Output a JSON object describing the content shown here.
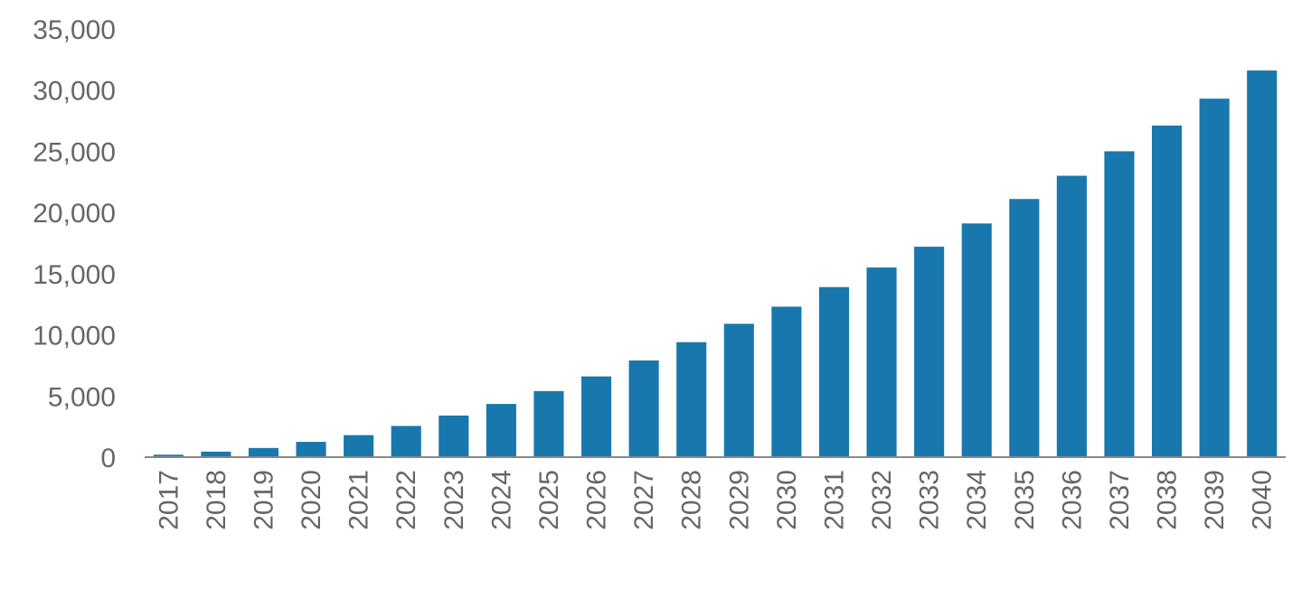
{
  "chart_data": {
    "type": "bar",
    "categories": [
      "2017",
      "2018",
      "2019",
      "2020",
      "2021",
      "2022",
      "2023",
      "2024",
      "2025",
      "2026",
      "2027",
      "2028",
      "2029",
      "2030",
      "2031",
      "2032",
      "2033",
      "2034",
      "2035",
      "2036",
      "2037",
      "2038",
      "2039",
      "2040"
    ],
    "values": [
      200,
      450,
      750,
      1250,
      1800,
      2550,
      3400,
      4350,
      5400,
      6600,
      7900,
      9400,
      10900,
      12300,
      13900,
      15500,
      17200,
      19100,
      21100,
      23000,
      25000,
      27100,
      29300,
      31600
    ],
    "ylim": [
      0,
      35000
    ],
    "yticks": [
      0,
      5000,
      10000,
      15000,
      20000,
      25000,
      30000,
      35000
    ],
    "ytick_labels": [
      "0",
      "5,000",
      "10,000",
      "15,000",
      "20,000",
      "25,000",
      "30,000",
      "35,000"
    ],
    "title": "",
    "xlabel": "",
    "ylabel": "",
    "bar_color": "#1878ad",
    "grid": false,
    "legend": "none"
  }
}
